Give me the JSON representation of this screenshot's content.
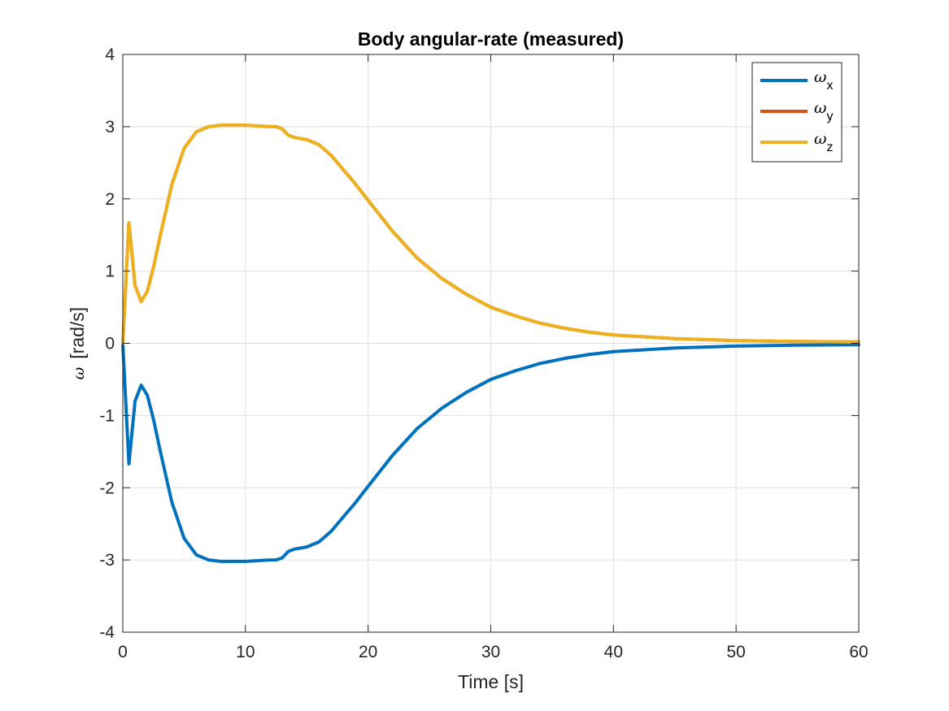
{
  "chart_data": {
    "type": "line",
    "title": "Body angular-rate (measured)",
    "xlabel": "Time [s]",
    "ylabel_symbol": "ω",
    "ylabel_unit": "[rad/s]",
    "xlim": [
      0,
      60
    ],
    "ylim": [
      -4,
      4
    ],
    "x_ticks": [
      0,
      10,
      20,
      30,
      40,
      50,
      60
    ],
    "y_ticks": [
      -4,
      -3,
      -2,
      -1,
      0,
      1,
      2,
      3,
      4
    ],
    "grid": true,
    "legend_position": "top-right",
    "series": [
      {
        "name": "ω",
        "subscript": "x",
        "color": "#0072BD",
        "x": [
          0,
          0.5,
          1,
          1.5,
          2,
          2.5,
          3,
          4,
          5,
          6,
          7,
          8,
          9,
          10,
          11,
          12,
          12.5,
          13,
          13.5,
          14,
          15,
          16,
          17,
          18,
          19,
          20,
          22,
          24,
          26,
          28,
          30,
          32,
          34,
          36,
          38,
          40,
          45,
          50,
          55,
          60
        ],
        "values": [
          0,
          -1.67,
          -0.8,
          -0.58,
          -0.72,
          -1.05,
          -1.45,
          -2.2,
          -2.7,
          -2.93,
          -3.0,
          -3.02,
          -3.02,
          -3.02,
          -3.01,
          -3.0,
          -3.0,
          -2.97,
          -2.88,
          -2.85,
          -2.82,
          -2.75,
          -2.6,
          -2.4,
          -2.2,
          -1.98,
          -1.55,
          -1.18,
          -0.9,
          -0.68,
          -0.5,
          -0.38,
          -0.28,
          -0.21,
          -0.155,
          -0.115,
          -0.065,
          -0.038,
          -0.025,
          -0.02
        ]
      },
      {
        "name": "ω",
        "subscript": "y",
        "color": "#D95319",
        "x": [
          0,
          0.5,
          1,
          1.5,
          2,
          2.5,
          3,
          4,
          5,
          6,
          7,
          8,
          9,
          10,
          11,
          12,
          12.5,
          13,
          13.5,
          14,
          15,
          16,
          17,
          18,
          19,
          20,
          22,
          24,
          26,
          28,
          30,
          32,
          34,
          36,
          38,
          40,
          45,
          50,
          55,
          60
        ],
        "values": [
          0,
          1.67,
          0.8,
          0.58,
          0.72,
          1.05,
          1.45,
          2.2,
          2.7,
          2.93,
          3.0,
          3.02,
          3.02,
          3.02,
          3.01,
          3.0,
          3.0,
          2.97,
          2.88,
          2.85,
          2.82,
          2.75,
          2.6,
          2.4,
          2.2,
          1.98,
          1.55,
          1.18,
          0.9,
          0.68,
          0.5,
          0.38,
          0.28,
          0.21,
          0.155,
          0.115,
          0.065,
          0.038,
          0.025,
          0.02
        ]
      },
      {
        "name": "ω",
        "subscript": "z",
        "color": "#EDB120",
        "x": [
          0,
          0.5,
          1,
          1.5,
          2,
          2.5,
          3,
          4,
          5,
          6,
          7,
          8,
          9,
          10,
          11,
          12,
          12.5,
          13,
          13.5,
          14,
          15,
          16,
          17,
          18,
          19,
          20,
          22,
          24,
          26,
          28,
          30,
          32,
          34,
          36,
          38,
          40,
          45,
          50,
          55,
          60
        ],
        "values": [
          0,
          1.67,
          0.8,
          0.58,
          0.72,
          1.05,
          1.45,
          2.2,
          2.7,
          2.93,
          3.0,
          3.02,
          3.02,
          3.02,
          3.01,
          3.0,
          3.0,
          2.97,
          2.88,
          2.85,
          2.82,
          2.75,
          2.6,
          2.4,
          2.2,
          1.98,
          1.55,
          1.18,
          0.9,
          0.68,
          0.5,
          0.38,
          0.28,
          0.21,
          0.155,
          0.115,
          0.065,
          0.038,
          0.025,
          0.02
        ]
      }
    ]
  }
}
